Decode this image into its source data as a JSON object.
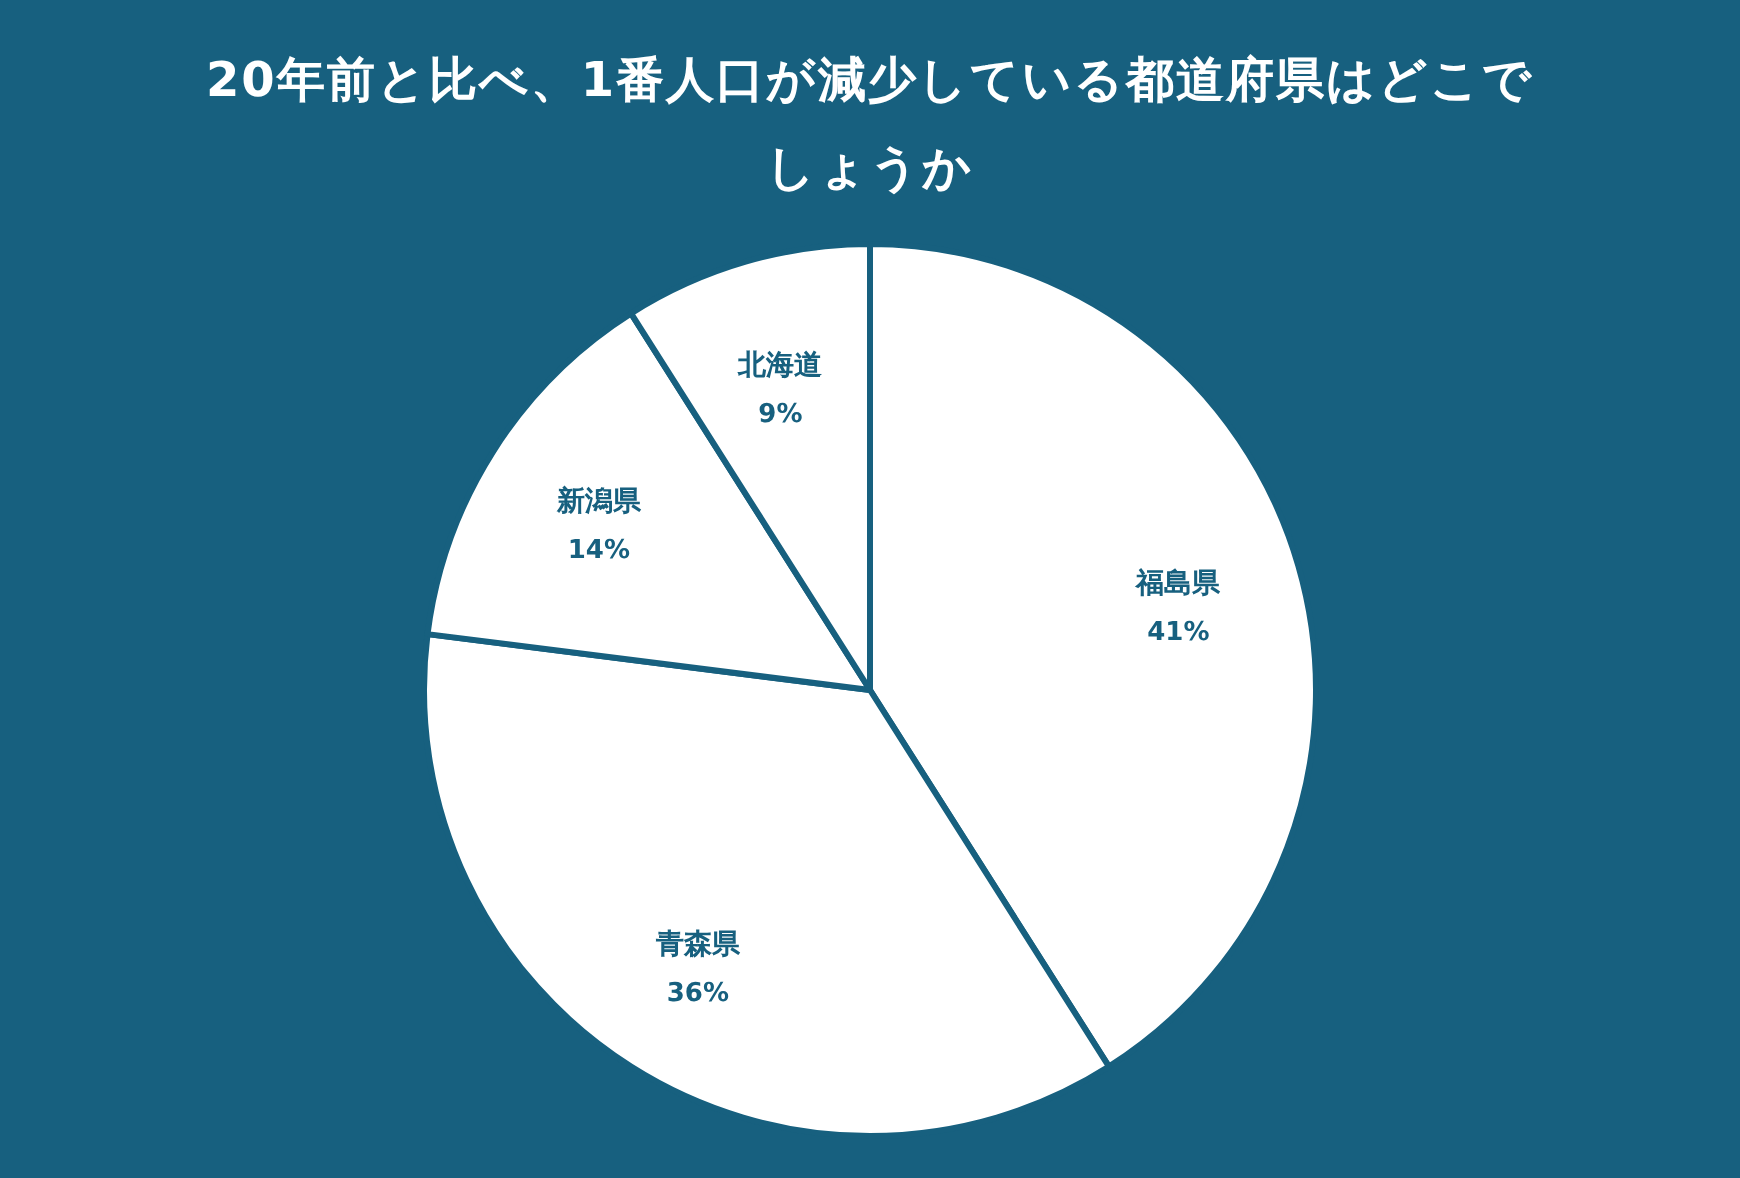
{
  "chart_data": {
    "type": "pie",
    "title": "20年前と比べ、1番人口が減少している都道府県はどこでしょうか",
    "categories": [
      "福島県",
      "青森県",
      "新潟県",
      "北海道"
    ],
    "values": [
      41,
      36,
      14,
      9
    ],
    "colors": [
      "#ffffff",
      "#ffffff",
      "#ffffff",
      "#ffffff"
    ],
    "value_labels": [
      "41%",
      "36%",
      "14%",
      "9%"
    ]
  }
}
